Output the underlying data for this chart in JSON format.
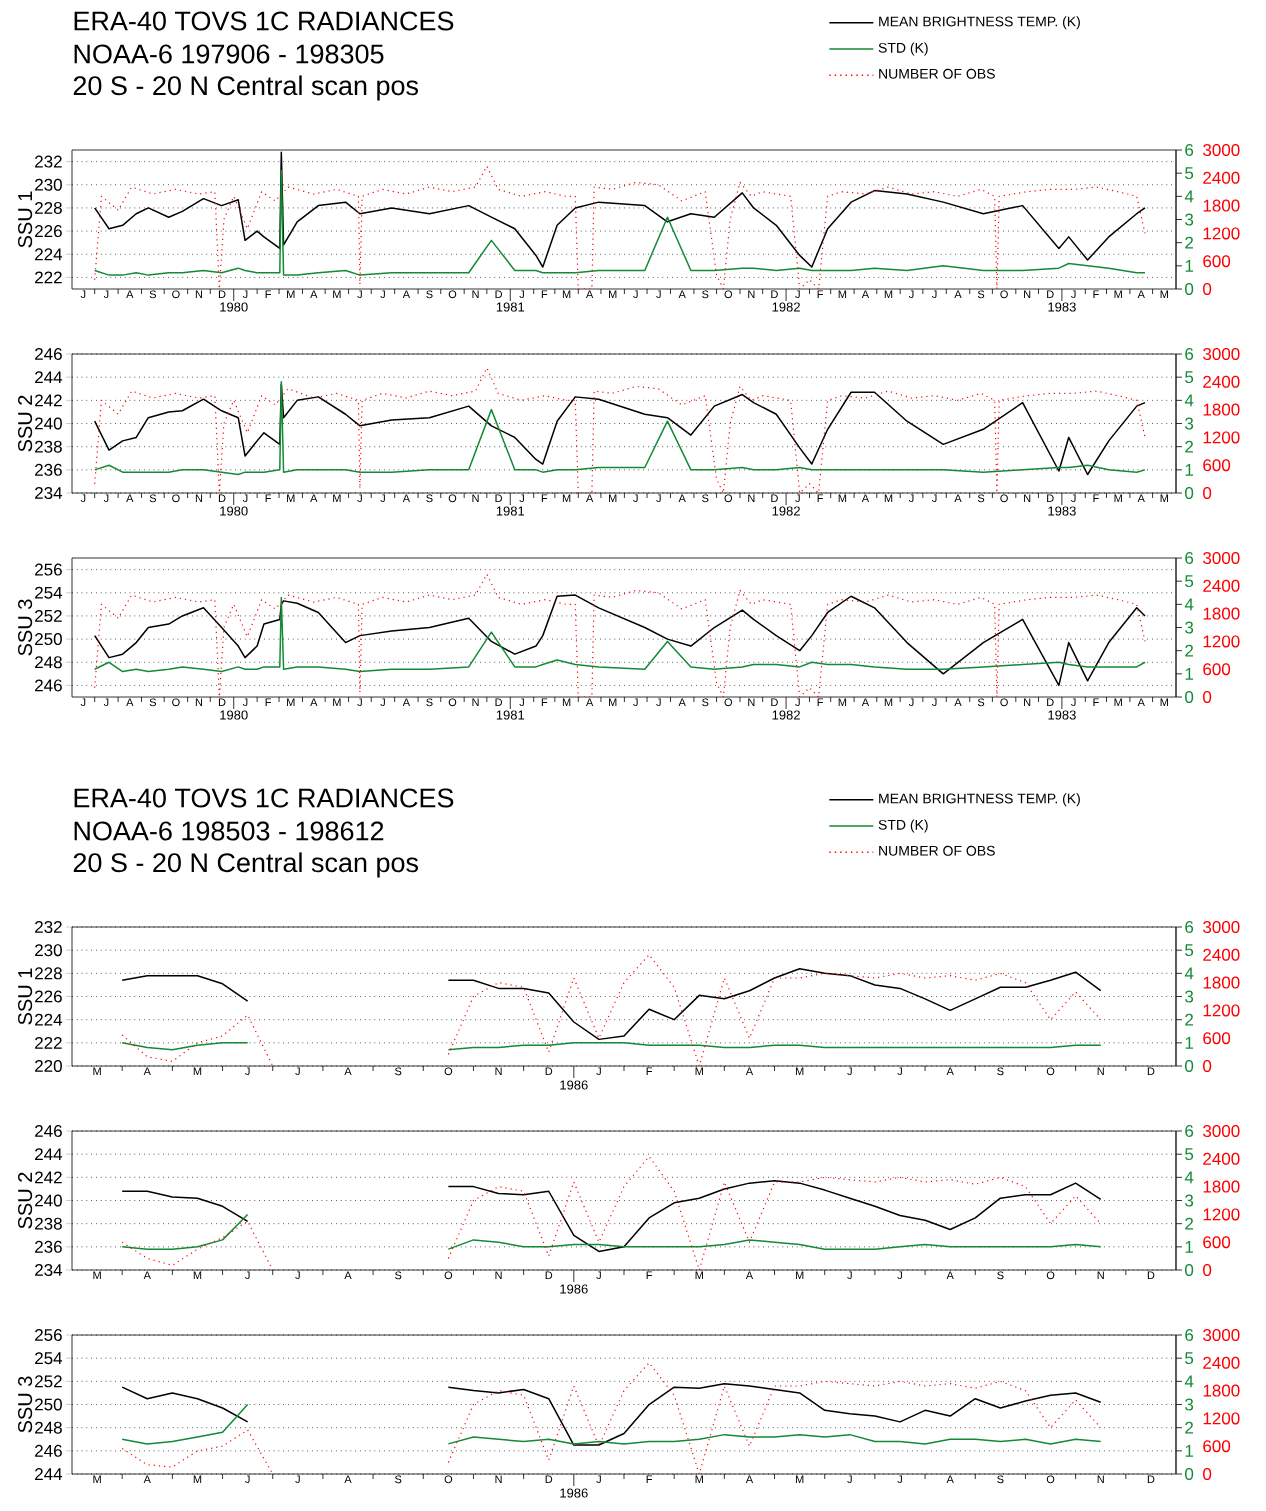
{
  "chart_data": [
    {
      "type": "line",
      "title": "ERA-40  TOVS 1C RADIANCES",
      "subtitle": "NOAA-6   197906 - 198305",
      "annotations": [
        "20 S - 20 N        Central scan pos",
        "J",
        "J",
        "A",
        "S",
        "O",
        "N",
        "D",
        "J",
        "F",
        "M",
        "A",
        "M",
        "J",
        "J",
        "A",
        "S",
        "O",
        "N",
        "D",
        "J",
        "F",
        "M",
        "A",
        "M",
        "J",
        "J",
        "A",
        "S",
        "O",
        "N",
        "D",
        "J",
        "F",
        "M",
        "A",
        "M",
        "J",
        "J",
        "A",
        "S",
        "O",
        "N",
        "D",
        "J",
        "F",
        "M",
        "A",
        "M"
      ],
      "ylabel": "SSU 1",
      "legend": "top right",
      "grid": "y",
      "x": [
        "1979-07-01",
        "1979-07-20",
        "1979-08-07",
        "1979-08-25",
        "1979-09-10",
        "1979-10-07",
        "1979-10-25",
        "1979-11-22",
        "1979-12-16",
        "1980-01-07",
        "1980-01-16",
        "1980-02-01",
        "1980-02-10",
        "1980-03-02",
        "1980-03-04",
        "1980-03-07",
        "1980-03-25",
        "1980-04-22",
        "1980-05-28",
        "1980-06-16",
        "1980-07-28",
        "1980-09-16",
        "1980-11-07",
        "1980-12-07",
        "1981-01-07",
        "1981-02-04",
        "1981-02-13",
        "1981-03-04",
        "1981-03-28",
        "1981-04-28",
        "1981-06-28",
        "1981-07-28",
        "1981-08-28",
        "1981-09-28",
        "1981-11-04",
        "1981-11-19",
        "1981-12-19",
        "1982-01-19",
        "1982-02-04",
        "1982-02-25",
        "1982-03-28",
        "1982-04-28",
        "1982-06-10",
        "1982-07-28",
        "1982-09-19",
        "1982-11-10",
        "1982-12-28",
        "1983-01-10",
        "1983-02-04",
        "1983-03-04",
        "1983-04-10",
        "1983-04-21"
      ],
      "xlim": [
        "1979-06-01",
        "1983-06-01"
      ],
      "xticks": [
        {
          "value": "1980-01-01",
          "label": "1980"
        },
        {
          "value": "1981-01-01",
          "label": "1981"
        },
        {
          "value": "1982-01-01",
          "label": "1982"
        },
        {
          "value": "1983-01-01",
          "label": "1983"
        }
      ],
      "ylim": [
        221,
        233
      ],
      "yticks": [
        222,
        224,
        226,
        228,
        230,
        232
      ],
      "y2lim": [
        0,
        6
      ],
      "y2ticks": [
        0,
        1,
        2,
        3,
        4,
        5,
        6
      ],
      "y3lim": [
        0,
        3000
      ],
      "y3ticks": [
        0,
        600,
        1200,
        1800,
        2400,
        3000
      ],
      "series": [
        {
          "name": "MEAN BRIGHTNESS TEMP. (K)",
          "color": "#000000",
          "values": [
            228,
            226.2,
            226.5,
            227.5,
            228,
            227.2,
            227.7,
            228.8,
            228.2,
            228.7,
            225.2,
            226,
            225.5,
            224.5,
            232.8,
            224.8,
            226.8,
            228.2,
            228.5,
            227.5,
            228,
            227.5,
            228.2,
            227.2,
            226.2,
            223.9,
            222.9,
            226.5,
            228,
            228.5,
            228.2,
            226.8,
            227.5,
            227.2,
            229.3,
            228,
            226.5,
            223.9,
            222.9,
            226.2,
            228.5,
            229.5,
            229.2,
            228.5,
            227.5,
            228.2,
            224.5,
            225.5,
            223.5,
            225.5,
            227.5,
            228
          ]
        },
        {
          "name": "STD (K)",
          "color": "#138a36",
          "axis": "y2",
          "values": [
            0.8,
            0.6,
            0.6,
            0.7,
            0.6,
            0.7,
            0.7,
            0.8,
            0.7,
            0.9,
            0.8,
            0.7,
            0.7,
            0.7,
            5.1,
            0.6,
            0.6,
            0.7,
            0.8,
            0.6,
            0.7,
            0.7,
            0.7,
            2.1,
            0.8,
            0.8,
            0.7,
            0.7,
            0.7,
            0.8,
            0.8,
            3.1,
            0.8,
            0.8,
            0.9,
            0.9,
            0.8,
            0.9,
            0.8,
            0.8,
            0.8,
            0.9,
            0.8,
            1.0,
            0.8,
            0.8,
            0.9,
            1.1,
            1.0,
            0.9,
            0.7,
            0.7
          ]
        },
        {
          "name": "NUMBER OF OBS",
          "color": "#ff0000",
          "axis": "y3",
          "line_style": "dotted",
          "x": [
            "1979-07-01",
            "1979-07-10",
            "1979-08-01",
            "1979-08-19",
            "1979-09-16",
            "1979-10-16",
            "1979-11-16",
            "1979-12-07",
            "1979-12-13",
            "1979-12-19",
            "1980-01-01",
            "1980-01-19",
            "1980-02-07",
            "1980-02-25",
            "1980-03-13",
            "1980-04-16",
            "1980-05-16",
            "1980-06-14",
            "1980-06-16",
            "1980-06-19",
            "1980-07-16",
            "1980-08-16",
            "1980-09-16",
            "1980-10-16",
            "1980-11-16",
            "1980-12-01",
            "1980-12-16",
            "1981-01-16",
            "1981-02-16",
            "1981-03-16",
            "1981-03-28",
            "1981-04-01",
            "1981-04-19",
            "1981-04-22",
            "1981-05-16",
            "1981-06-16",
            "1981-07-16",
            "1981-08-16",
            "1981-09-16",
            "1981-10-01",
            "1981-10-10",
            "1981-10-19",
            "1981-11-01",
            "1981-11-16",
            "1981-12-01",
            "1982-01-07",
            "1982-01-19",
            "1982-02-01",
            "1982-02-13",
            "1982-02-25",
            "1982-03-16",
            "1982-04-16",
            "1982-05-16",
            "1982-06-16",
            "1982-07-16",
            "1982-08-16",
            "1982-09-16",
            "1982-10-04",
            "1982-10-07",
            "1982-10-10",
            "1982-11-16",
            "1982-12-16",
            "1983-01-16",
            "1983-02-16",
            "1983-03-16",
            "1983-04-10",
            "1983-04-21"
          ],
          "values": [
            200,
            2000,
            1700,
            2200,
            2050,
            2150,
            2050,
            2100,
            0,
            1500,
            2000,
            1300,
            2100,
            1900,
            2200,
            2050,
            2150,
            2000,
            100,
            2000,
            2150,
            2050,
            2200,
            2100,
            2200,
            2650,
            2150,
            2000,
            2100,
            2000,
            2000,
            0,
            0,
            2200,
            2150,
            2300,
            2250,
            1900,
            2100,
            300,
            0,
            1500,
            2300,
            2000,
            2100,
            2000,
            0,
            200,
            0,
            2000,
            2100,
            2050,
            2200,
            2050,
            2100,
            2000,
            2150,
            2000,
            0,
            2000,
            2100,
            2150,
            2150,
            2200,
            2100,
            2000,
            1200
          ]
        }
      ]
    },
    {
      "type": "line",
      "ylabel": "SSU 2",
      "grid": "y",
      "annotations": [
        "J",
        "J",
        "A",
        "S",
        "O",
        "N",
        "D",
        "J",
        "F",
        "M",
        "A",
        "M",
        "J",
        "J",
        "A",
        "S",
        "O",
        "N",
        "D",
        "J",
        "F",
        "M",
        "A",
        "M",
        "J",
        "J",
        "A",
        "S",
        "O",
        "N",
        "D",
        "J",
        "F",
        "M",
        "A",
        "M",
        "J",
        "J",
        "A",
        "S",
        "O",
        "N",
        "D",
        "J",
        "F",
        "M",
        "A",
        "M"
      ],
      "x": [
        "1979-07-01",
        "1979-07-20",
        "1979-08-07",
        "1979-08-25",
        "1979-09-10",
        "1979-10-07",
        "1979-10-25",
        "1979-11-22",
        "1979-12-16",
        "1980-01-07",
        "1980-01-16",
        "1980-02-01",
        "1980-02-10",
        "1980-03-02",
        "1980-03-04",
        "1980-03-07",
        "1980-03-25",
        "1980-04-22",
        "1980-05-28",
        "1980-06-16",
        "1980-07-28",
        "1980-09-16",
        "1980-11-07",
        "1980-12-07",
        "1981-01-07",
        "1981-02-04",
        "1981-02-13",
        "1981-03-04",
        "1981-03-28",
        "1981-04-28",
        "1981-06-28",
        "1981-07-28",
        "1981-08-28",
        "1981-09-28",
        "1981-11-04",
        "1981-11-19",
        "1981-12-19",
        "1982-01-19",
        "1982-02-04",
        "1982-02-25",
        "1982-03-28",
        "1982-04-28",
        "1982-06-10",
        "1982-07-28",
        "1982-09-19",
        "1982-11-10",
        "1982-12-28",
        "1983-01-10",
        "1983-02-04",
        "1983-03-04",
        "1983-04-10",
        "1983-04-21"
      ],
      "xlim": [
        "1979-06-01",
        "1983-06-01"
      ],
      "xticks": [
        {
          "value": "1980-01-01",
          "label": "1980"
        },
        {
          "value": "1981-01-01",
          "label": "1981"
        },
        {
          "value": "1982-01-01",
          "label": "1982"
        },
        {
          "value": "1983-01-01",
          "label": "1983"
        }
      ],
      "ylim": [
        234,
        246
      ],
      "yticks": [
        234,
        236,
        238,
        240,
        242,
        244,
        246
      ],
      "y2lim": [
        0,
        6
      ],
      "y2ticks": [
        0,
        1,
        2,
        3,
        4,
        5,
        6
      ],
      "y3lim": [
        0,
        3000
      ],
      "y3ticks": [
        0,
        600,
        1200,
        1800,
        2400,
        3000
      ],
      "series": [
        {
          "color": "#000000",
          "values": [
            240.2,
            237.7,
            238.5,
            238.8,
            240.5,
            241,
            241.1,
            242.1,
            241.1,
            240.5,
            237.2,
            238.5,
            239.2,
            238.2,
            243.4,
            240.5,
            242,
            242.3,
            240.8,
            239.8,
            240.3,
            240.5,
            241.5,
            239.8,
            238.8,
            236.9,
            236.5,
            240.2,
            242.3,
            242.1,
            240.8,
            240.5,
            239,
            241.5,
            242.5,
            241.8,
            240.8,
            237.9,
            236.5,
            239.5,
            242.7,
            242.7,
            240.2,
            238.2,
            239.5,
            241.8,
            235.9,
            238.8,
            235.6,
            238.5,
            241.5,
            241.8
          ]
        },
        {
          "color": "#138a36",
          "axis": "y2",
          "values": [
            1.0,
            1.2,
            0.9,
            0.9,
            0.9,
            0.9,
            1.0,
            1.0,
            0.9,
            0.8,
            0.9,
            0.9,
            0.9,
            1.0,
            4.8,
            0.9,
            1.0,
            1.0,
            1.0,
            0.9,
            0.9,
            1.0,
            1.0,
            3.6,
            1.0,
            1.0,
            0.9,
            1.0,
            1.0,
            1.1,
            1.1,
            3.1,
            1.0,
            1.0,
            1.1,
            1.0,
            1.0,
            1.1,
            1.0,
            1.0,
            1.0,
            1.0,
            1.0,
            1.0,
            0.9,
            1.0,
            1.1,
            1.1,
            1.2,
            1.0,
            0.9,
            1.0
          ]
        },
        {
          "color": "#ff0000",
          "axis": "y3",
          "line_style": "dotted",
          "x": [
            "1979-07-01",
            "1979-07-10",
            "1979-08-01",
            "1979-08-19",
            "1979-09-16",
            "1979-10-16",
            "1979-11-16",
            "1979-12-07",
            "1979-12-13",
            "1979-12-19",
            "1980-01-01",
            "1980-01-19",
            "1980-02-07",
            "1980-02-25",
            "1980-03-13",
            "1980-04-16",
            "1980-05-16",
            "1980-06-14",
            "1980-06-16",
            "1980-06-19",
            "1980-07-16",
            "1980-08-16",
            "1980-09-16",
            "1980-10-16",
            "1980-11-16",
            "1980-12-01",
            "1980-12-16",
            "1981-01-16",
            "1981-02-16",
            "1981-03-16",
            "1981-03-28",
            "1981-04-01",
            "1981-04-19",
            "1981-04-22",
            "1981-05-16",
            "1981-06-16",
            "1981-07-16",
            "1981-08-16",
            "1981-09-16",
            "1981-10-01",
            "1981-10-10",
            "1981-10-19",
            "1981-11-01",
            "1981-11-16",
            "1981-12-01",
            "1982-01-07",
            "1982-01-19",
            "1982-02-01",
            "1982-02-13",
            "1982-02-25",
            "1982-03-16",
            "1982-04-16",
            "1982-05-16",
            "1982-06-16",
            "1982-07-16",
            "1982-08-16",
            "1982-09-16",
            "1982-10-04",
            "1982-10-07",
            "1982-10-10",
            "1982-11-16",
            "1982-12-16",
            "1983-01-16",
            "1983-02-16",
            "1983-03-16",
            "1983-04-10",
            "1983-04-21"
          ],
          "values": [
            200,
            2000,
            1700,
            2200,
            2050,
            2150,
            2050,
            2100,
            0,
            1500,
            2000,
            1300,
            2100,
            1900,
            2250,
            2050,
            2150,
            2000,
            100,
            2000,
            2150,
            2050,
            2200,
            2100,
            2200,
            2700,
            2150,
            2000,
            2100,
            2000,
            2000,
            0,
            0,
            2200,
            2150,
            2300,
            2250,
            1900,
            2100,
            300,
            0,
            1500,
            2300,
            2000,
            2100,
            2000,
            0,
            200,
            0,
            2000,
            2100,
            2050,
            2200,
            2050,
            2100,
            2000,
            2150,
            2000,
            0,
            2000,
            2100,
            2150,
            2150,
            2200,
            2100,
            2000,
            1200
          ]
        }
      ]
    },
    {
      "type": "line",
      "ylabel": "SSU 3",
      "grid": "y",
      "annotations": [
        "J",
        "J",
        "A",
        "S",
        "O",
        "N",
        "D",
        "J",
        "F",
        "M",
        "A",
        "M",
        "J",
        "J",
        "A",
        "S",
        "O",
        "N",
        "D",
        "J",
        "F",
        "M",
        "A",
        "M",
        "J",
        "J",
        "A",
        "S",
        "O",
        "N",
        "D",
        "J",
        "F",
        "M",
        "A",
        "M",
        "J",
        "J",
        "A",
        "S",
        "O",
        "N",
        "D",
        "J",
        "F",
        "M",
        "A",
        "M"
      ],
      "x": [
        "1979-07-01",
        "1979-07-20",
        "1979-08-07",
        "1979-08-25",
        "1979-09-10",
        "1979-10-07",
        "1979-10-25",
        "1979-11-22",
        "1979-12-16",
        "1980-01-07",
        "1980-01-16",
        "1980-02-01",
        "1980-02-10",
        "1980-03-02",
        "1980-03-04",
        "1980-03-07",
        "1980-03-25",
        "1980-04-22",
        "1980-05-28",
        "1980-06-16",
        "1980-07-28",
        "1980-09-16",
        "1980-11-07",
        "1980-12-07",
        "1981-01-07",
        "1981-02-04",
        "1981-02-13",
        "1981-03-04",
        "1981-03-28",
        "1981-04-28",
        "1981-06-28",
        "1981-07-28",
        "1981-08-28",
        "1981-09-28",
        "1981-11-04",
        "1981-11-19",
        "1981-12-19",
        "1982-01-19",
        "1982-02-04",
        "1982-02-25",
        "1982-03-28",
        "1982-04-28",
        "1982-06-10",
        "1982-07-28",
        "1982-09-19",
        "1982-11-10",
        "1982-12-28",
        "1983-01-10",
        "1983-02-04",
        "1983-03-04",
        "1983-04-10",
        "1983-04-21"
      ],
      "xlim": [
        "1979-06-01",
        "1983-06-01"
      ],
      "xticks": [
        {
          "value": "1980-01-01",
          "label": "1980"
        },
        {
          "value": "1981-01-01",
          "label": "1981"
        },
        {
          "value": "1982-01-01",
          "label": "1982"
        },
        {
          "value": "1983-01-01",
          "label": "1983"
        }
      ],
      "ylim": [
        245,
        257
      ],
      "yticks": [
        246,
        248,
        250,
        252,
        254,
        256
      ],
      "y2lim": [
        0,
        6
      ],
      "y2ticks": [
        0,
        1,
        2,
        3,
        4,
        5,
        6
      ],
      "y3lim": [
        0,
        3000
      ],
      "y3ticks": [
        0,
        600,
        1200,
        1800,
        2400,
        3000
      ],
      "series": [
        {
          "color": "#000000",
          "values": [
            250.3,
            248.4,
            248.7,
            249.7,
            251,
            251.3,
            252,
            252.7,
            251,
            249.4,
            248.4,
            249.4,
            251.3,
            251.7,
            253,
            253.3,
            253.1,
            252.3,
            249.7,
            250.3,
            250.7,
            251,
            251.8,
            249.8,
            248.7,
            249.4,
            250.3,
            253.7,
            253.8,
            252.7,
            251,
            250,
            249.4,
            251,
            252.5,
            251.7,
            250.3,
            249,
            250.3,
            252.3,
            253.7,
            252.7,
            249.7,
            247,
            249.7,
            251.7,
            246,
            249.7,
            246.4,
            249.7,
            252.7,
            252
          ]
        },
        {
          "color": "#138a36",
          "axis": "y2",
          "values": [
            1.2,
            1.5,
            1.1,
            1.2,
            1.1,
            1.2,
            1.3,
            1.2,
            1.1,
            1.3,
            1.2,
            1.2,
            1.3,
            1.3,
            4.3,
            1.2,
            1.3,
            1.3,
            1.2,
            1.1,
            1.2,
            1.2,
            1.3,
            2.8,
            1.3,
            1.3,
            1.4,
            1.6,
            1.4,
            1.3,
            1.2,
            2.4,
            1.3,
            1.2,
            1.3,
            1.4,
            1.4,
            1.3,
            1.5,
            1.4,
            1.4,
            1.3,
            1.2,
            1.2,
            1.3,
            1.4,
            1.5,
            1.4,
            1.3,
            1.3,
            1.3,
            1.5
          ]
        },
        {
          "color": "#ff0000",
          "axis": "y3",
          "line_style": "dotted",
          "x": [
            "1979-07-01",
            "1979-07-10",
            "1979-08-01",
            "1979-08-19",
            "1979-09-16",
            "1979-10-16",
            "1979-11-16",
            "1979-12-07",
            "1979-12-13",
            "1979-12-19",
            "1980-01-01",
            "1980-01-19",
            "1980-02-07",
            "1980-02-25",
            "1980-03-13",
            "1980-04-16",
            "1980-05-16",
            "1980-06-14",
            "1980-06-16",
            "1980-06-19",
            "1980-07-16",
            "1980-08-16",
            "1980-09-16",
            "1980-10-16",
            "1980-11-16",
            "1980-12-01",
            "1980-12-16",
            "1981-01-16",
            "1981-02-16",
            "1981-03-16",
            "1981-03-28",
            "1981-04-01",
            "1981-04-19",
            "1981-04-22",
            "1981-05-16",
            "1981-06-16",
            "1981-07-16",
            "1981-08-16",
            "1981-09-16",
            "1981-10-01",
            "1981-10-10",
            "1981-10-19",
            "1981-11-01",
            "1981-11-16",
            "1981-12-01",
            "1982-01-07",
            "1982-01-19",
            "1982-02-01",
            "1982-02-13",
            "1982-02-25",
            "1982-03-16",
            "1982-04-16",
            "1982-05-16",
            "1982-06-16",
            "1982-07-16",
            "1982-08-16",
            "1982-09-16",
            "1982-10-04",
            "1982-10-07",
            "1982-10-10",
            "1982-11-16",
            "1982-12-16",
            "1983-01-16",
            "1983-02-16",
            "1983-03-16",
            "1983-04-10",
            "1983-04-21"
          ],
          "values": [
            200,
            2000,
            1700,
            2200,
            2050,
            2150,
            2050,
            2100,
            0,
            1500,
            2000,
            1300,
            2100,
            1900,
            2200,
            2050,
            2150,
            2000,
            100,
            2000,
            2150,
            2050,
            2200,
            2100,
            2200,
            2650,
            2150,
            2000,
            2100,
            2000,
            2000,
            0,
            0,
            2200,
            2150,
            2300,
            2250,
            1900,
            2100,
            300,
            0,
            1500,
            2300,
            2000,
            2100,
            2000,
            0,
            200,
            0,
            2000,
            2100,
            2050,
            2200,
            2050,
            2100,
            2000,
            2150,
            2000,
            0,
            2000,
            2100,
            2150,
            2150,
            2200,
            2100,
            2000,
            1200
          ]
        }
      ]
    },
    {
      "type": "line",
      "title": "ERA-40  TOVS 1C RADIANCES",
      "subtitle": "NOAA-6   198503 - 198612",
      "annotations": [
        "20 S - 20 N        Central scan pos"
      ],
      "ylabel": "SSU 1",
      "legend": "top right",
      "grid": "y",
      "categories": [
        null,
        "M",
        null,
        "A",
        null,
        "M",
        null,
        "J",
        null,
        "J",
        null,
        "A",
        null,
        "S",
        null,
        "O",
        null,
        "N",
        null,
        "D",
        "1986",
        "J",
        null,
        "F",
        null,
        "M",
        null,
        "A",
        null,
        "M",
        null,
        "J",
        null,
        "J",
        null,
        "A",
        null,
        "S",
        null,
        "O",
        null,
        "N",
        null,
        "D"
      ],
      "ylim": [
        220,
        232
      ],
      "yticks": [
        220,
        222,
        224,
        226,
        228,
        230,
        232
      ],
      "y2lim": [
        0,
        6
      ],
      "y2ticks": [
        0,
        1,
        2,
        3,
        4,
        5,
        6
      ],
      "y3lim": [
        0,
        3000
      ],
      "y3ticks": [
        0,
        600,
        1200,
        1800,
        2400,
        3000
      ],
      "series": [
        {
          "name": "MEAN BRIGHTNESS TEMP. (K)",
          "color": "#000000",
          "values": [
            null,
            null,
            227.4,
            227.8,
            227.8,
            227.8,
            227.1,
            225.6,
            null,
            null,
            null,
            null,
            null,
            null,
            null,
            227.4,
            227.4,
            226.7,
            226.7,
            226.3,
            223.8,
            222.3,
            222.6,
            224.9,
            224.0,
            226.1,
            225.8,
            226.5,
            227.6,
            228.4,
            228.0,
            227.8,
            227.0,
            226.7,
            225.8,
            224.8,
            225.8,
            226.8,
            226.8,
            227.4,
            228.1,
            226.5,
            null,
            null
          ]
        },
        {
          "name": "STD (K)",
          "color": "#138a36",
          "axis": "y2",
          "values": [
            null,
            null,
            1.0,
            0.8,
            0.7,
            0.9,
            1.0,
            1.0,
            null,
            null,
            null,
            null,
            null,
            null,
            null,
            0.7,
            0.8,
            0.8,
            0.9,
            0.9,
            1.0,
            1.0,
            1.0,
            0.9,
            0.9,
            0.9,
            0.8,
            0.8,
            0.9,
            0.9,
            0.8,
            0.8,
            0.8,
            0.8,
            0.8,
            0.8,
            0.8,
            0.8,
            0.8,
            0.8,
            0.9,
            0.9,
            null,
            null
          ]
        },
        {
          "name": "NUMBER OF OBS",
          "color": "#ff0000",
          "axis": "y3",
          "line_style": "dotted",
          "values": [
            null,
            null,
            670,
            200,
            100,
            500,
            650,
            1100,
            0,
            null,
            null,
            null,
            null,
            null,
            null,
            250,
            1500,
            1800,
            1700,
            300,
            1900,
            600,
            1800,
            2400,
            1700,
            0,
            1900,
            600,
            1900,
            1900,
            2000,
            1950,
            1900,
            2000,
            1900,
            1950,
            1850,
            2000,
            1800,
            1000,
            1600,
            1000,
            null,
            null
          ]
        }
      ]
    },
    {
      "type": "line",
      "ylabel": "SSU 2",
      "grid": "y",
      "categories": [
        null,
        "M",
        null,
        "A",
        null,
        "M",
        null,
        "J",
        null,
        "J",
        null,
        "A",
        null,
        "S",
        null,
        "O",
        null,
        "N",
        null,
        "D",
        "1986",
        "J",
        null,
        "F",
        null,
        "M",
        null,
        "A",
        null,
        "M",
        null,
        "J",
        null,
        "J",
        null,
        "A",
        null,
        "S",
        null,
        "O",
        null,
        "N",
        null,
        "D"
      ],
      "ylim": [
        234,
        246
      ],
      "yticks": [
        234,
        236,
        238,
        240,
        242,
        244,
        246
      ],
      "y2lim": [
        0,
        6
      ],
      "y2ticks": [
        0,
        1,
        2,
        3,
        4,
        5,
        6
      ],
      "y3lim": [
        0,
        3000
      ],
      "y3ticks": [
        0,
        600,
        1200,
        1800,
        2400,
        3000
      ],
      "series": [
        {
          "color": "#000000",
          "values": [
            null,
            null,
            240.8,
            240.8,
            240.3,
            240.2,
            239.5,
            238.2,
            null,
            null,
            null,
            null,
            null,
            null,
            null,
            241.2,
            241.2,
            240.6,
            240.5,
            240.8,
            237.0,
            235.6,
            236.0,
            238.5,
            239.8,
            240.2,
            241.0,
            241.5,
            241.7,
            241.5,
            240.9,
            240.2,
            239.5,
            238.7,
            238.3,
            237.5,
            238.5,
            240.2,
            240.5,
            240.5,
            241.5,
            240.1,
            null,
            null
          ]
        },
        {
          "color": "#138a36",
          "axis": "y2",
          "values": [
            null,
            null,
            1.0,
            0.9,
            0.9,
            1.0,
            1.3,
            2.4,
            null,
            null,
            null,
            null,
            null,
            null,
            null,
            0.9,
            1.3,
            1.2,
            1.0,
            1.0,
            1.1,
            1.1,
            1.0,
            1.0,
            1.0,
            1.0,
            1.1,
            1.3,
            1.2,
            1.1,
            0.9,
            0.9,
            0.9,
            1.0,
            1.1,
            1.0,
            1.0,
            1.0,
            1.0,
            1.0,
            1.1,
            1.0,
            null,
            null
          ]
        },
        {
          "color": "#ff0000",
          "axis": "y3",
          "line_style": "dotted",
          "values": [
            null,
            null,
            600,
            250,
            100,
            450,
            700,
            1050,
            0,
            null,
            null,
            null,
            null,
            null,
            null,
            250,
            1500,
            1800,
            1700,
            300,
            1900,
            600,
            1800,
            2450,
            1700,
            0,
            1900,
            600,
            1900,
            1900,
            2000,
            1950,
            1900,
            2000,
            1900,
            1950,
            1850,
            2000,
            1800,
            1000,
            1600,
            1000,
            null,
            null
          ]
        }
      ]
    },
    {
      "type": "line",
      "ylabel": "SSU 3",
      "grid": "y",
      "categories": [
        null,
        "M",
        null,
        "A",
        null,
        "M",
        null,
        "J",
        null,
        "J",
        null,
        "A",
        null,
        "S",
        null,
        "O",
        null,
        "N",
        null,
        "D",
        "1986",
        "J",
        null,
        "F",
        null,
        "M",
        null,
        "A",
        null,
        "M",
        null,
        "J",
        null,
        "J",
        null,
        "A",
        null,
        "S",
        null,
        "O",
        null,
        "N",
        null,
        "D"
      ],
      "ylim": [
        244,
        256
      ],
      "yticks": [
        244,
        246,
        248,
        250,
        252,
        254,
        256
      ],
      "y2lim": [
        0,
        6
      ],
      "y2ticks": [
        0,
        1,
        2,
        3,
        4,
        5,
        6
      ],
      "y3lim": [
        0,
        3000
      ],
      "y3ticks": [
        0,
        600,
        1200,
        1800,
        2400,
        3000
      ],
      "series": [
        {
          "color": "#000000",
          "values": [
            null,
            null,
            251.5,
            250.5,
            251.0,
            250.5,
            249.7,
            248.5,
            null,
            null,
            null,
            null,
            null,
            null,
            null,
            251.5,
            251.2,
            251.0,
            251.3,
            250.5,
            246.5,
            246.5,
            247.5,
            250.0,
            251.5,
            251.4,
            251.8,
            251.6,
            251.3,
            251.0,
            249.5,
            249.2,
            249.0,
            248.5,
            249.5,
            249.0,
            250.5,
            249.7,
            250.3,
            250.8,
            251.0,
            250.2,
            null,
            null
          ]
        },
        {
          "color": "#138a36",
          "axis": "y2",
          "values": [
            null,
            null,
            1.5,
            1.3,
            1.4,
            1.6,
            1.8,
            3.0,
            null,
            null,
            null,
            null,
            null,
            null,
            null,
            1.3,
            1.6,
            1.5,
            1.4,
            1.5,
            1.3,
            1.4,
            1.3,
            1.4,
            1.4,
            1.5,
            1.7,
            1.6,
            1.6,
            1.7,
            1.6,
            1.7,
            1.4,
            1.4,
            1.3,
            1.5,
            1.5,
            1.4,
            1.5,
            1.3,
            1.5,
            1.4,
            null,
            null
          ]
        },
        {
          "color": "#ff0000",
          "axis": "y3",
          "line_style": "dotted",
          "values": [
            null,
            null,
            550,
            200,
            150,
            500,
            600,
            950,
            0,
            null,
            null,
            null,
            null,
            null,
            null,
            250,
            1500,
            1800,
            1700,
            300,
            1900,
            600,
            1800,
            2400,
            1700,
            0,
            1900,
            600,
            1900,
            1900,
            2000,
            1950,
            1900,
            2000,
            1900,
            1950,
            1850,
            2000,
            1800,
            1000,
            1600,
            1000,
            null,
            null
          ]
        }
      ]
    }
  ]
}
